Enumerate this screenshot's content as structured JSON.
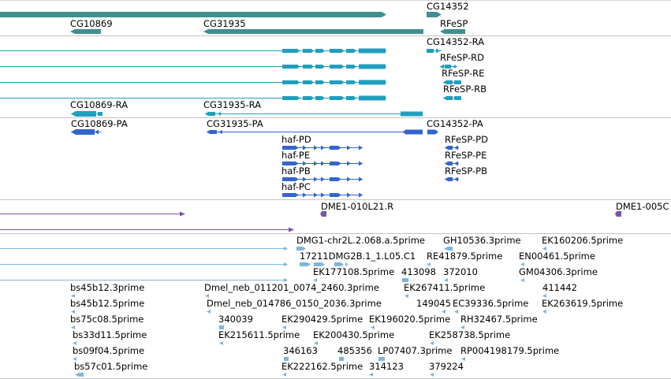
{
  "colors": {
    "gene": "#3e8f91",
    "transcript_rna": "#1f9fbd",
    "transcript_prot": "#3366cc",
    "clone": "#7b55a3",
    "est": "#7fb6d8",
    "divider": "#c4c4c4"
  },
  "genes": {
    "labels": [
      "CG14352",
      "CG10869",
      "CG31935",
      "RFeSP"
    ]
  },
  "transcripts": {
    "labels": [
      "CG14352-RA",
      "RFeSP-RD",
      "RFeSP-RE",
      "RFeSP-RB",
      "CG10869-RA",
      "CG31935-RA"
    ]
  },
  "proteins": {
    "labels": [
      "CG10869-PA",
      "CG31935-PA",
      "CG14352-PA",
      "haf-PD",
      "RFeSP-PD",
      "haf-PE",
      "RFeSP-PE",
      "haf-PB",
      "RFeSP-PB",
      "haf-PC"
    ]
  },
  "clones": {
    "labels": [
      "DME1-010L21.R",
      "DME1-005C"
    ]
  },
  "ests": {
    "labels": [
      "DMG1-chr2L.2.068.a.5prime",
      "GH10536.3prime",
      "EK160206.5prime",
      "17211DMG2B.1_1.L05.C1",
      "RE41879.5prime",
      "EN00461.5prime",
      "EK177108.5prime",
      "413098",
      "372010",
      "GM04306.3prime",
      "bs45b12.3prime",
      "Dmel_neb_011201_0074_2460.3prime",
      "EK267411.5prime",
      "411442",
      "bs45b12.5prime",
      "Dmel_neb_014786_0150_2036.3prime",
      "149045",
      "EC39336.5prime",
      "EK263619.5prime",
      "bs75c08.5prime",
      "340039",
      "EK290429.5prime",
      "EK196020.5prime",
      "RH32467.5prime",
      "bs33d11.5prime",
      "EK215611.5prime",
      "EK200430.5prime",
      "EK258738.5prime",
      "bs09f04.5prime",
      "346163",
      "485356",
      "LP07407.3prime",
      "RP004198179.5prime",
      "bs57c01.5prime",
      "EK222162.5prime",
      "314123",
      "379224"
    ]
  }
}
